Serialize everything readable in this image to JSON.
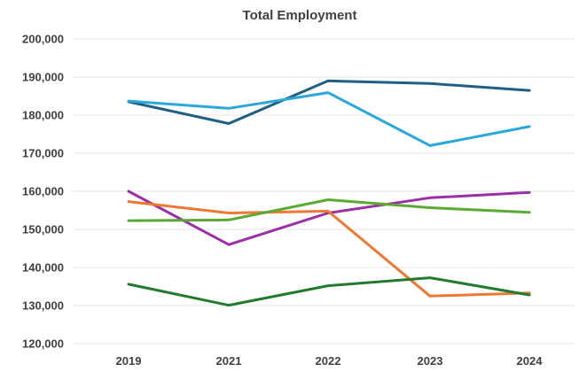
{
  "chart_data": {
    "type": "line",
    "title": "Total Employment",
    "xlabel": "",
    "ylabel": "",
    "categories": [
      "2019",
      "2021",
      "2022",
      "2023",
      "2024"
    ],
    "ylim": [
      120000,
      200000
    ],
    "yticks": [
      120000,
      130000,
      140000,
      150000,
      160000,
      170000,
      180000,
      190000,
      200000
    ],
    "ytick_labels": [
      "120,000",
      "130,000",
      "140,000",
      "150,000",
      "160,000",
      "170,000",
      "180,000",
      "190,000",
      "200,000"
    ],
    "grid": true,
    "legend": "none",
    "series": [
      {
        "color": "#1f5f86",
        "values": [
          183500,
          177800,
          189000,
          188300,
          186500
        ]
      },
      {
        "color": "#2aa8dc",
        "values": [
          183700,
          181800,
          185900,
          172000,
          177000
        ]
      },
      {
        "color": "#9b30a6",
        "values": [
          160000,
          146000,
          154300,
          158300,
          159700
        ]
      },
      {
        "color": "#ee7733",
        "values": [
          157300,
          154300,
          154800,
          132500,
          133300
        ]
      },
      {
        "color": "#5aaa32",
        "values": [
          152300,
          152500,
          157800,
          155700,
          154500
        ]
      },
      {
        "color": "#217a2e",
        "values": [
          135600,
          130100,
          135200,
          137300,
          132800
        ]
      }
    ]
  }
}
